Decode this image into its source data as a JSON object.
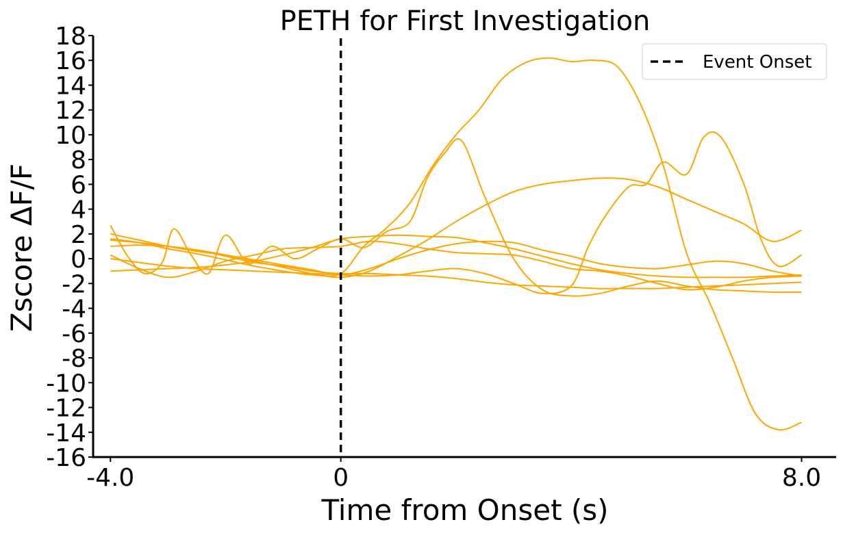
{
  "chart_data": {
    "type": "line",
    "title": "PETH for First Investigation",
    "xlabel": "Time from Onset (s)",
    "ylabel": "Zscore ΔF/F",
    "xlim": [
      -4.3,
      8.6
    ],
    "ylim": [
      -16,
      18
    ],
    "x_ticks": [
      -4.0,
      0,
      8.0
    ],
    "x_tick_labels": [
      "-4.0",
      "0",
      "8.0"
    ],
    "y_ticks": [
      -16,
      -14,
      -12,
      -10,
      -8,
      -6,
      -4,
      -2,
      0,
      2,
      4,
      6,
      8,
      10,
      12,
      14,
      16,
      18
    ],
    "y_tick_labels": [
      "-16",
      "-14",
      "-12",
      "-10",
      "-8",
      "-6",
      "-4",
      "-2",
      "0",
      "2",
      "4",
      "6",
      "8",
      "10",
      "12",
      "14",
      "16",
      "18"
    ],
    "grid": false,
    "line_color": "#ffa500",
    "event_line": {
      "x": 0,
      "label": "Event Onset",
      "color": "#000000",
      "style": "dashed"
    },
    "legend_position": "top-right",
    "series": [
      {
        "x": [
          -4.0,
          -3.5,
          -3.0,
          -2.5,
          -2.0,
          -1.5,
          -1.0,
          -0.5,
          0.0,
          0.5,
          1.0,
          1.5,
          2.0,
          2.5,
          3.0,
          3.5,
          4.0,
          4.5,
          5.0,
          5.5,
          6.0,
          6.5,
          7.0,
          7.5,
          8.0
        ],
        "y": [
          1.5,
          1.3,
          1.0,
          0.7,
          0.2,
          -0.3,
          -0.6,
          -1.0,
          -1.2,
          -1.2,
          -1.3,
          -1.4,
          -1.6,
          -1.9,
          -2.1,
          -2.2,
          -2.3,
          -2.4,
          -2.4,
          -2.4,
          -2.3,
          -2.2,
          -2.1,
          -2.0,
          -1.9
        ]
      },
      {
        "x": [
          -4.0,
          -3.5,
          -3.0,
          -2.5,
          -2.0,
          -1.5,
          -1.0,
          -0.5,
          0.0,
          0.5,
          1.0,
          1.5,
          2.0,
          2.5,
          3.0,
          3.5,
          4.0,
          4.5,
          5.0,
          5.5,
          6.0,
          6.5,
          7.0,
          7.5,
          8.0
        ],
        "y": [
          -1.0,
          -0.9,
          -0.8,
          -0.7,
          -0.5,
          -0.2,
          0.3,
          0.9,
          1.6,
          1.8,
          1.9,
          1.8,
          1.7,
          1.3,
          0.8,
          0.2,
          -0.4,
          -0.9,
          -1.2,
          -1.4,
          -1.5,
          -1.5,
          -1.5,
          -1.4,
          -1.3
        ]
      },
      {
        "x": [
          -4.0,
          -3.7,
          -3.4,
          -3.1,
          -2.9,
          -2.6,
          -2.3,
          -2.0,
          -1.6,
          -1.2,
          -0.8,
          -0.4,
          0.0,
          0.4,
          0.8,
          1.2,
          1.5,
          1.8,
          2.1,
          2.5,
          3.0,
          3.5,
          4.0,
          4.5,
          5.0,
          5.5,
          6.0,
          6.5,
          7.0,
          7.5,
          8.0
        ],
        "y": [
          2.7,
          0.2,
          -1.2,
          -0.3,
          2.4,
          0.3,
          -1.2,
          1.9,
          -0.4,
          1.0,
          0.0,
          0.8,
          1.6,
          0.9,
          2.2,
          3.0,
          6.5,
          8.5,
          9.5,
          5.0,
          0.0,
          -2.5,
          -3.0,
          -2.8,
          -2.2,
          -1.8,
          -2.2,
          -2.5,
          -2.6,
          -2.7,
          -2.7
        ]
      },
      {
        "x": [
          -4.0,
          -3.5,
          -3.0,
          -2.5,
          -2.0,
          -1.5,
          -1.0,
          -0.5,
          0.0,
          0.5,
          1.0,
          1.5,
          2.0,
          2.5,
          3.0,
          3.5,
          4.0,
          4.5,
          5.0,
          5.5,
          6.0,
          6.5,
          7.0,
          7.5,
          8.0
        ],
        "y": [
          0.3,
          -0.8,
          -1.5,
          -1.0,
          -0.2,
          0.3,
          0.8,
          0.9,
          1.0,
          1.4,
          1.2,
          0.8,
          0.5,
          0.4,
          0.3,
          -0.2,
          -0.8,
          -1.0,
          -1.4,
          -2.0,
          -2.5,
          -2.3,
          -1.8,
          -1.5,
          -1.4
        ]
      },
      {
        "x": [
          -4.0,
          -3.5,
          -3.0,
          -2.5,
          -2.0,
          -1.5,
          -1.0,
          -0.5,
          0.0,
          0.5,
          1.0,
          1.5,
          2.0,
          2.5,
          3.0,
          3.5,
          4.0,
          4.5,
          5.0,
          5.5,
          6.0,
          6.5,
          7.0,
          7.5,
          8.0
        ],
        "y": [
          2.0,
          1.5,
          1.0,
          0.6,
          0.3,
          -0.1,
          -0.5,
          -0.9,
          -1.3,
          -0.8,
          0.0,
          0.7,
          1.2,
          1.4,
          1.3,
          0.7,
          0.2,
          -0.4,
          -0.7,
          -0.8,
          -0.5,
          -0.2,
          -0.4,
          -1.0,
          -1.4
        ]
      },
      {
        "x": [
          -4.0,
          -3.5,
          -3.0,
          -2.5,
          -2.0,
          -1.5,
          -1.0,
          -0.5,
          0.0,
          0.5,
          1.0,
          1.5,
          2.0,
          2.5,
          3.0,
          3.5,
          4.0,
          4.5,
          5.0,
          5.5,
          6.0,
          6.5,
          7.0,
          7.5,
          8.0
        ],
        "y": [
          1.0,
          1.1,
          1.0,
          0.7,
          0.3,
          -0.2,
          -0.7,
          -1.2,
          -1.5,
          -1.0,
          0.2,
          1.5,
          3.0,
          4.3,
          5.4,
          6.0,
          6.3,
          6.5,
          6.4,
          5.8,
          4.8,
          3.8,
          2.8,
          1.4,
          2.3
        ]
      },
      {
        "x": [
          -4.0,
          -3.5,
          -3.0,
          -2.5,
          -2.0,
          -1.5,
          -1.0,
          -0.5,
          0.0,
          0.4,
          0.8,
          1.2,
          1.6,
          2.0,
          2.4,
          2.8,
          3.2,
          3.6,
          4.0,
          4.4,
          4.8,
          5.2,
          5.6,
          6.0,
          6.4,
          6.8,
          7.2,
          7.6,
          8.0
        ],
        "y": [
          1.6,
          1.3,
          0.8,
          0.4,
          -0.1,
          -0.6,
          -1.0,
          -1.3,
          -1.2,
          1.0,
          2.5,
          4.5,
          7.5,
          10.0,
          12.0,
          14.5,
          15.8,
          16.2,
          15.9,
          16.0,
          15.5,
          12.5,
          7.5,
          0.5,
          -3.5,
          -8.0,
          -12.5,
          -13.8,
          -13.2
        ]
      },
      {
        "x": [
          -4.0,
          -3.5,
          -3.0,
          -2.5,
          -2.0,
          -1.5,
          -1.0,
          -0.5,
          0.0,
          0.5,
          1.0,
          1.5,
          2.0,
          2.5,
          3.0,
          3.5,
          4.0,
          4.3,
          4.6,
          5.0,
          5.3,
          5.6,
          6.0,
          6.3,
          6.6,
          7.0,
          7.3,
          7.6,
          8.0
        ],
        "y": [
          0.0,
          -0.3,
          -0.6,
          -0.8,
          -0.9,
          -1.0,
          -1.1,
          -1.2,
          -1.3,
          -1.4,
          -1.3,
          -1.0,
          -0.8,
          -1.2,
          -2.0,
          -2.8,
          -2.2,
          1.0,
          3.5,
          5.8,
          6.0,
          7.8,
          6.8,
          9.8,
          9.8,
          6.0,
          1.5,
          -0.6,
          0.3
        ]
      }
    ]
  }
}
